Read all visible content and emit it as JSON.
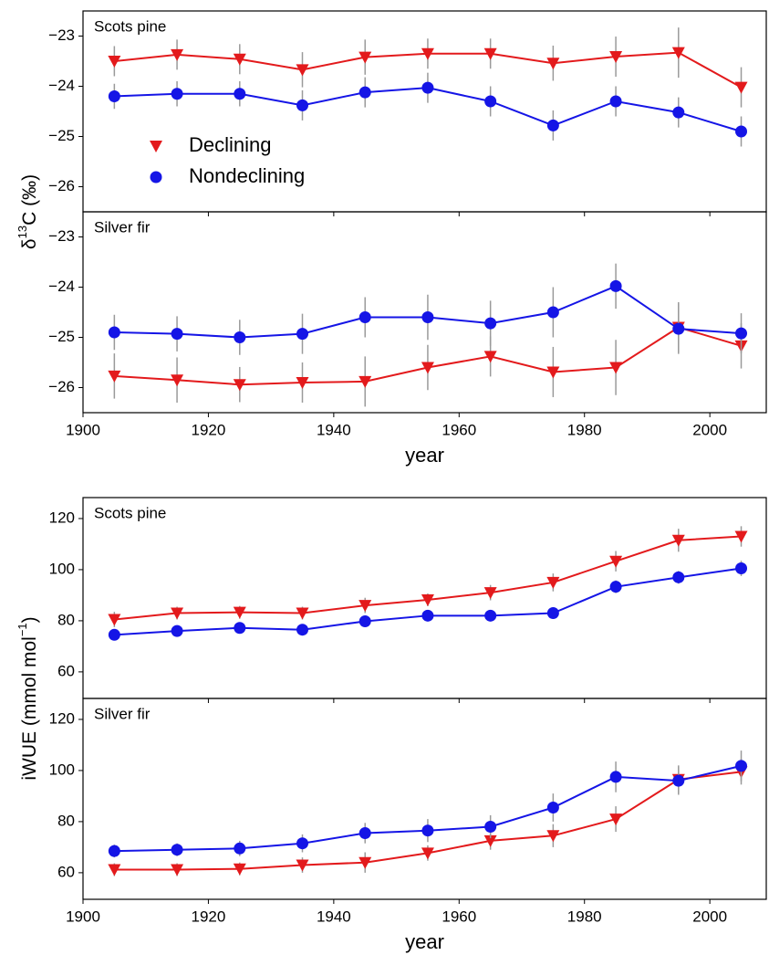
{
  "chart_data": [
    {
      "type": "line",
      "title": "Scots pine",
      "ylabel": [
        "δ",
        "13",
        "C (‰)"
      ],
      "x": [
        1905,
        1915,
        1925,
        1935,
        1945,
        1955,
        1965,
        1975,
        1985,
        1995,
        2005
      ],
      "xlim": [
        1900,
        2009
      ],
      "xticks": [
        1900,
        1920,
        1940,
        1960,
        1980,
        2000
      ],
      "show_xticklabels": false,
      "ylim": [
        -26.5,
        -22.5
      ],
      "yticks": [
        {
          "value": -23,
          "label": "−23"
        },
        {
          "value": -24,
          "label": "−24"
        },
        {
          "value": -25,
          "label": "−25"
        },
        {
          "value": -26,
          "label": "−26"
        }
      ],
      "legend": "center left",
      "errorbar_color": "#9a9a9a",
      "series": [
        {
          "name": "Declining",
          "color": "#e31a1c",
          "marker": "v",
          "values": [
            -23.5,
            -23.37,
            -23.46,
            -23.67,
            -23.42,
            -23.35,
            -23.35,
            -23.54,
            -23.41,
            -23.33,
            -24.02
          ],
          "errors": [
            0.3,
            0.3,
            0.3,
            0.35,
            0.35,
            0.3,
            0.3,
            0.35,
            0.4,
            0.5,
            0.4
          ]
        },
        {
          "name": "Nondeclining",
          "color": "#1515e6",
          "marker": "o",
          "values": [
            -24.2,
            -24.15,
            -24.15,
            -24.38,
            -24.12,
            -24.03,
            -24.3,
            -24.78,
            -24.3,
            -24.52,
            -24.9
          ],
          "errors": [
            0.25,
            0.25,
            0.25,
            0.3,
            0.3,
            0.3,
            0.3,
            0.3,
            0.3,
            0.3,
            0.3
          ]
        }
      ]
    },
    {
      "type": "line",
      "title": "Silver fir",
      "xlabel": "year",
      "x": [
        1905,
        1915,
        1925,
        1935,
        1945,
        1955,
        1965,
        1975,
        1985,
        1995,
        2005
      ],
      "xlim": [
        1900,
        2009
      ],
      "xticks": [
        1900,
        1920,
        1940,
        1960,
        1980,
        2000
      ],
      "show_xticklabels": true,
      "ylim": [
        -26.5,
        -22.5
      ],
      "yticks": [
        {
          "value": -23,
          "label": "−23"
        },
        {
          "value": -24,
          "label": "−24"
        },
        {
          "value": -25,
          "label": "−25"
        },
        {
          "value": -26,
          "label": "−26"
        }
      ],
      "errorbar_color": "#9a9a9a",
      "series": [
        {
          "name": "Declining",
          "color": "#e31a1c",
          "marker": "v",
          "values": [
            -25.77,
            -25.85,
            -25.94,
            -25.9,
            -25.88,
            -25.6,
            -25.38,
            -25.69,
            -25.6,
            -24.8,
            -25.17
          ],
          "errors": [
            0.45,
            0.45,
            0.35,
            0.4,
            0.5,
            0.45,
            0.4,
            0.5,
            0.55,
            0.5,
            0.45
          ]
        },
        {
          "name": "Nondeclining",
          "color": "#1515e6",
          "marker": "o",
          "values": [
            -24.9,
            -24.93,
            -25.0,
            -24.93,
            -24.6,
            -24.6,
            -24.72,
            -24.5,
            -23.98,
            -24.83,
            -24.92
          ],
          "errors": [
            0.35,
            0.35,
            0.35,
            0.4,
            0.4,
            0.45,
            0.45,
            0.5,
            0.45,
            0.5,
            0.4
          ]
        }
      ]
    },
    {
      "type": "line",
      "title": "Scots pine",
      "ylabel": [
        "iWUE (mmol mol",
        "−1",
        ")"
      ],
      "x": [
        1905,
        1915,
        1925,
        1935,
        1945,
        1955,
        1965,
        1975,
        1985,
        1995,
        2005
      ],
      "xlim": [
        1900,
        2009
      ],
      "xticks": [
        1900,
        1920,
        1940,
        1960,
        1980,
        2000
      ],
      "show_xticklabels": false,
      "ylim": [
        49.6,
        128.2
      ],
      "yticks": [
        60,
        80,
        100,
        120
      ],
      "errorbar_color": "#9a9a9a",
      "series": [
        {
          "name": "Declining",
          "color": "#e31a1c",
          "marker": "v",
          "values": [
            80.5,
            83,
            83.3,
            83,
            86,
            88.2,
            91,
            95,
            103.3,
            111.5,
            113
          ],
          "errors": [
            3,
            2.5,
            2.5,
            2.5,
            3,
            2.5,
            3,
            3.5,
            4,
            4.5,
            4
          ]
        },
        {
          "name": "Nondeclining",
          "color": "#1515e6",
          "marker": "o",
          "values": [
            74.5,
            76,
            77.2,
            76.5,
            79.8,
            82,
            82,
            83,
            93.3,
            97,
            100.5
          ],
          "errors": [
            2,
            2,
            2,
            2,
            2,
            2,
            2,
            2,
            2.5,
            2.5,
            3
          ]
        }
      ]
    },
    {
      "type": "line",
      "title": "Silver fir",
      "xlabel": "year",
      "x": [
        1905,
        1915,
        1925,
        1935,
        1945,
        1955,
        1965,
        1975,
        1985,
        1995,
        2005
      ],
      "xlim": [
        1900,
        2009
      ],
      "xticks": [
        1900,
        1920,
        1940,
        1960,
        1980,
        2000
      ],
      "show_xticklabels": true,
      "ylim": [
        49.6,
        128.2
      ],
      "yticks": [
        60,
        80,
        100,
        120
      ],
      "errorbar_color": "#9a9a9a",
      "series": [
        {
          "name": "Declining",
          "color": "#e31a1c",
          "marker": "v",
          "values": [
            61.2,
            61.2,
            61.5,
            63,
            64,
            67.7,
            72.5,
            74.5,
            81,
            96.5,
            99.5
          ],
          "errors": [
            2.5,
            2.5,
            2.5,
            3,
            4,
            3,
            3.5,
            4.5,
            5,
            5.5,
            5
          ]
        },
        {
          "name": "Nondeclining",
          "color": "#1515e6",
          "marker": "o",
          "values": [
            68.5,
            69,
            69.5,
            71.5,
            75.5,
            76.5,
            78,
            85.5,
            97.5,
            96,
            101.8
          ],
          "errors": [
            2.5,
            2.5,
            3,
            3.5,
            4,
            4.5,
            4.5,
            5.5,
            6,
            5.5,
            6
          ]
        }
      ]
    }
  ]
}
